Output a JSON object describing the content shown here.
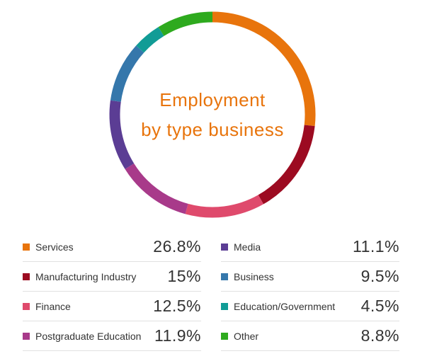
{
  "chart_data": {
    "type": "pie",
    "title": "Employment by type business",
    "title_lines": [
      "Employment",
      "by type business"
    ],
    "categories": [
      "Services",
      "Manufacturing Industry",
      "Finance",
      "Postgraduate Education",
      "Media",
      "Business",
      "Education/Government",
      "Other"
    ],
    "values": [
      26.8,
      15,
      12.5,
      11.9,
      11.1,
      9.5,
      4.5,
      8.8
    ],
    "value_labels": [
      "26.8%",
      "15%",
      "12.5%",
      "11.9%",
      "11.1%",
      "9.5%",
      "4.5%",
      "8.8%"
    ],
    "colors": [
      "#e8740c",
      "#9c0b21",
      "#df4a6c",
      "#a83a8a",
      "#5b3d94",
      "#3577ab",
      "#119c96",
      "#2eaa1e"
    ],
    "legend_placement": "bottom"
  }
}
